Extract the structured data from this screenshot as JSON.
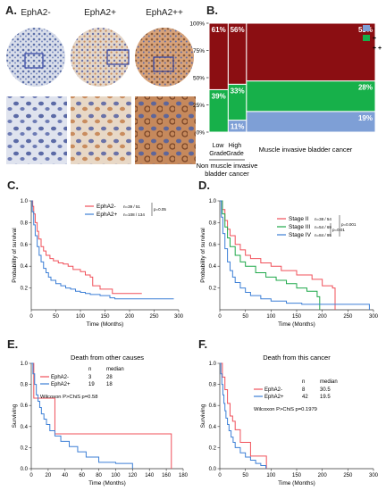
{
  "figure": {
    "panel_labels": {
      "A": "A.",
      "B": "B.",
      "C": "C.",
      "D": "D.",
      "E": "E.",
      "F": "F."
    },
    "colors": {
      "red": "#8b0e12",
      "green": "#17b04a",
      "blue": "#7e9fd6",
      "km_red": "#f0505a",
      "km_blue": "#3c7fd6",
      "km_green": "#1fa84a"
    }
  },
  "panel_a": {
    "headers": [
      "EphA2-",
      "EphA2+",
      "EphA2++"
    ]
  },
  "panel_b": {
    "legend": [
      "-",
      "+",
      "+ +"
    ],
    "y_ticks": [
      "0%",
      "25%",
      "50%",
      "75%",
      "100%"
    ],
    "group_labels": {
      "low": [
        "Low",
        "Grade"
      ],
      "high": [
        "High",
        "Grade"
      ],
      "nmibc": [
        "Non muscle invasive",
        "bladder cancer"
      ],
      "mibc": "Muscle invasive bladder cancer"
    }
  },
  "chart_data": [
    {
      "panel": "B",
      "type": "bar",
      "categories": [
        "Low Grade",
        "High Grade",
        "Muscle invasive bladder cancer"
      ],
      "widths": [
        0.115,
        0.11,
        0.775
      ],
      "series": [
        {
          "name": "-",
          "values": [
            0,
            11,
            19
          ],
          "labels": [
            "",
            "11%",
            "19%"
          ]
        },
        {
          "name": "+",
          "values": [
            39,
            33,
            28
          ],
          "labels": [
            "39%",
            "33%",
            "28%"
          ]
        },
        {
          "name": "+ +",
          "values": [
            61,
            56,
            53
          ],
          "labels": [
            "61%",
            "56%",
            "53%"
          ]
        }
      ],
      "ylim": [
        0,
        100
      ]
    },
    {
      "panel": "C",
      "type": "line",
      "xlabel": "Time (Months)",
      "ylabel": "Probability of survival",
      "xlim": [
        0,
        300
      ],
      "ylim": [
        0,
        1
      ],
      "x_ticks": [
        0,
        50,
        100,
        150,
        200,
        250,
        300
      ],
      "y_ticks": [
        0.2,
        0.4,
        0.6,
        0.8,
        1.0
      ],
      "legend": [
        {
          "name": "EphA2-",
          "n": "n=39 / 51"
        },
        {
          "name": "EphA2+",
          "n": "n=108 / 134"
        }
      ],
      "pvalue": "p=0.05",
      "series": [
        {
          "name": "EphA2-",
          "color": "#f0505a",
          "x": [
            0,
            3,
            5,
            8,
            12,
            15,
            20,
            25,
            30,
            38,
            45,
            55,
            65,
            75,
            85,
            100,
            110,
            120,
            125,
            140,
            165,
            225
          ],
          "y": [
            1.0,
            0.95,
            0.88,
            0.8,
            0.72,
            0.65,
            0.58,
            0.54,
            0.5,
            0.47,
            0.45,
            0.43,
            0.42,
            0.4,
            0.37,
            0.35,
            0.32,
            0.3,
            0.22,
            0.19,
            0.15,
            0.15
          ]
        },
        {
          "name": "EphA2+",
          "color": "#3c7fd6",
          "x": [
            0,
            2,
            5,
            8,
            12,
            16,
            20,
            25,
            30,
            35,
            40,
            50,
            60,
            70,
            80,
            90,
            100,
            110,
            120,
            140,
            160,
            170,
            290
          ],
          "y": [
            1.0,
            0.9,
            0.78,
            0.68,
            0.58,
            0.5,
            0.44,
            0.38,
            0.34,
            0.3,
            0.27,
            0.24,
            0.22,
            0.2,
            0.19,
            0.17,
            0.16,
            0.15,
            0.14,
            0.13,
            0.11,
            0.1,
            0.1
          ]
        }
      ]
    },
    {
      "panel": "D",
      "type": "line",
      "xlabel": "Time (Months)",
      "ylabel": "Probability of survival",
      "xlim": [
        0,
        300
      ],
      "ylim": [
        0,
        1
      ],
      "x_ticks": [
        0,
        50,
        100,
        150,
        200,
        250,
        300
      ],
      "y_ticks": [
        0.2,
        0.4,
        0.6,
        0.8,
        1.0
      ],
      "legend": [
        {
          "name": "Stage II",
          "n": "n=38 / 54"
        },
        {
          "name": "Stage III",
          "n": "n=54 / 69"
        },
        {
          "name": "Stage IV",
          "n": "n=84 / 95"
        }
      ],
      "pvalues": [
        "p=0.001",
        "p=0.01"
      ],
      "series": [
        {
          "name": "Stage II",
          "color": "#f0505a",
          "x": [
            0,
            5,
            10,
            15,
            20,
            30,
            40,
            50,
            60,
            80,
            100,
            120,
            150,
            180,
            200,
            220,
            225
          ],
          "y": [
            1.0,
            0.92,
            0.82,
            0.74,
            0.68,
            0.6,
            0.55,
            0.5,
            0.47,
            0.43,
            0.4,
            0.36,
            0.32,
            0.28,
            0.22,
            0.2,
            0.0
          ]
        },
        {
          "name": "Stage III",
          "color": "#1fa84a",
          "x": [
            0,
            5,
            10,
            15,
            20,
            30,
            40,
            50,
            70,
            90,
            110,
            130,
            150,
            170,
            190,
            195
          ],
          "y": [
            1.0,
            0.88,
            0.76,
            0.66,
            0.58,
            0.5,
            0.44,
            0.4,
            0.34,
            0.3,
            0.27,
            0.24,
            0.2,
            0.17,
            0.12,
            0.0
          ]
        },
        {
          "name": "Stage IV",
          "color": "#3c7fd6",
          "x": [
            0,
            3,
            6,
            10,
            15,
            20,
            25,
            30,
            40,
            50,
            60,
            80,
            100,
            130,
            160,
            290,
            292
          ],
          "y": [
            1.0,
            0.85,
            0.7,
            0.56,
            0.44,
            0.36,
            0.3,
            0.25,
            0.2,
            0.16,
            0.13,
            0.1,
            0.08,
            0.06,
            0.05,
            0.05,
            0.0
          ]
        }
      ]
    },
    {
      "panel": "E",
      "type": "line",
      "title": "Death from other causes",
      "xlabel": "Time (Months)",
      "ylabel": "Surviving",
      "xlim": [
        0,
        180
      ],
      "ylim": [
        0,
        1
      ],
      "x_ticks": [
        0,
        20,
        40,
        60,
        80,
        100,
        120,
        140,
        160,
        180
      ],
      "y_ticks": [
        0.0,
        0.2,
        0.4,
        0.6,
        0.8,
        1.0
      ],
      "table": {
        "headers": [
          "",
          "n",
          "median"
        ],
        "rows": [
          [
            "EphA2-",
            "3",
            "28"
          ],
          [
            "EphA2+",
            "19",
            "18"
          ]
        ]
      },
      "test": "Wilcoxon P>ChiS p=0.58",
      "series": [
        {
          "name": "EphA2-",
          "color": "#f0505a",
          "x": [
            0,
            3,
            28,
            165,
            166
          ],
          "y": [
            1.0,
            0.67,
            0.33,
            0.33,
            0.0
          ]
        },
        {
          "name": "EphA2+",
          "color": "#3c7fd6",
          "x": [
            0,
            2,
            4,
            6,
            8,
            10,
            12,
            15,
            18,
            22,
            28,
            35,
            45,
            55,
            65,
            80,
            100,
            120
          ],
          "y": [
            1.0,
            0.9,
            0.8,
            0.7,
            0.64,
            0.58,
            0.52,
            0.47,
            0.42,
            0.36,
            0.31,
            0.26,
            0.21,
            0.16,
            0.11,
            0.06,
            0.05,
            0.0
          ]
        }
      ]
    },
    {
      "panel": "F",
      "type": "line",
      "title": "Death from this cancer",
      "xlabel": "Time (Months)",
      "ylabel": "Surviving",
      "xlim": [
        0,
        300
      ],
      "ylim": [
        0,
        1
      ],
      "x_ticks": [
        0,
        50,
        100,
        150,
        200,
        250,
        300
      ],
      "y_ticks": [
        0.0,
        0.2,
        0.4,
        0.6,
        0.8,
        1.0
      ],
      "table": {
        "headers": [
          "",
          "n",
          "median"
        ],
        "rows": [
          [
            "EphA2-",
            "8",
            "30.5"
          ],
          [
            "EphA2+",
            "42",
            "19.5"
          ]
        ]
      },
      "test": "Wilcoxon P>ChiS p=0.1979",
      "series": [
        {
          "name": "EphA2-",
          "color": "#f0505a",
          "x": [
            0,
            5,
            10,
            15,
            20,
            25,
            30,
            40,
            60,
            90,
            91
          ],
          "y": [
            1.0,
            0.87,
            0.75,
            0.62,
            0.5,
            0.45,
            0.37,
            0.25,
            0.12,
            0.12,
            0.0
          ]
        },
        {
          "name": "EphA2+",
          "color": "#3c7fd6",
          "x": [
            0,
            2,
            4,
            6,
            8,
            10,
            12,
            15,
            18,
            22,
            26,
            30,
            40,
            50,
            60,
            70,
            80,
            90
          ],
          "y": [
            1.0,
            0.9,
            0.8,
            0.7,
            0.62,
            0.55,
            0.48,
            0.42,
            0.36,
            0.3,
            0.25,
            0.2,
            0.15,
            0.11,
            0.08,
            0.05,
            0.03,
            0.0
          ]
        }
      ]
    }
  ]
}
